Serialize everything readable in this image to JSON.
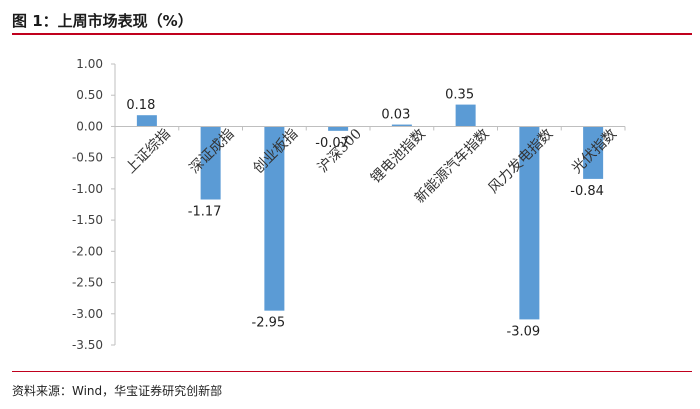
{
  "header": {
    "title": "图 1：上周市场表现（%）"
  },
  "footer": {
    "source": "资料来源：Wind，华宝证券研究创新部"
  },
  "colors": {
    "bar": "#5b9bd5",
    "accent": "#c0001d",
    "gridline": "#d9d9d9",
    "axis": "#bfbfbf",
    "text": "#404040"
  },
  "chart_data": {
    "type": "bar",
    "title": "",
    "xlabel": "",
    "ylabel": "",
    "categories": [
      "上证综指",
      "深证成指",
      "创业板指",
      "沪深300",
      "锂电池指数",
      "新能源汽车指数",
      "风力发电指数",
      "光伏指数"
    ],
    "values": [
      0.18,
      -1.17,
      -2.95,
      -0.07,
      0.03,
      0.35,
      -3.09,
      -0.84
    ],
    "value_labels": [
      "0.18",
      "-1.17",
      "-2.95",
      "-0.07",
      "0.03",
      "0.35",
      "-3.09",
      "-0.84"
    ],
    "ylim": [
      -3.5,
      1.0
    ],
    "yticks": [
      1.0,
      0.5,
      0.0,
      -0.5,
      -1.0,
      -1.5,
      -2.0,
      -2.5,
      -3.0,
      -3.5
    ],
    "ytick_labels": [
      "1.00",
      "0.50",
      "0.00",
      "-0.50",
      "-1.00",
      "-1.50",
      "-2.00",
      "-2.50",
      "-3.00",
      "-3.50"
    ],
    "grid": false,
    "legend": "none"
  }
}
